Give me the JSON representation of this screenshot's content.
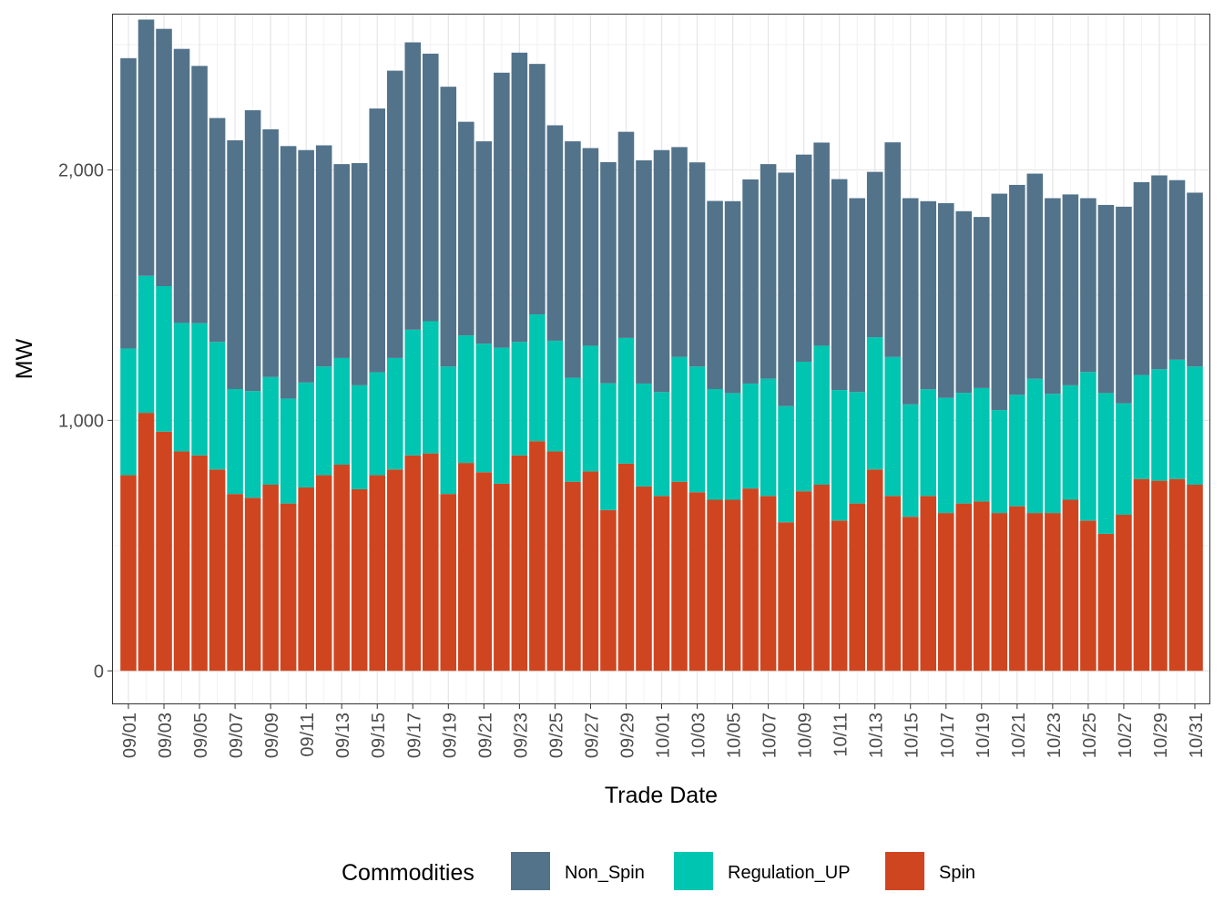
{
  "chart_data": {
    "type": "bar",
    "stacked": true,
    "xlabel": "Trade Date",
    "ylabel": "MW",
    "ylim": [
      -130,
      2620
    ],
    "yticks": [
      0,
      1000,
      2000
    ],
    "ytick_labels": [
      "0",
      "1,000",
      "2,000"
    ],
    "grid": true,
    "legend": {
      "title": "Commodities",
      "position": "bottom"
    },
    "categories": [
      "09/01",
      "09/02",
      "09/03",
      "09/04",
      "09/05",
      "09/06",
      "09/07",
      "09/08",
      "09/09",
      "09/10",
      "09/11",
      "09/12",
      "09/13",
      "09/14",
      "09/15",
      "09/16",
      "09/17",
      "09/18",
      "09/19",
      "09/20",
      "09/21",
      "09/22",
      "09/23",
      "09/24",
      "09/25",
      "09/26",
      "09/27",
      "09/28",
      "09/29",
      "09/30",
      "10/01",
      "10/02",
      "10/03",
      "10/04",
      "10/05",
      "10/06",
      "10/07",
      "10/08",
      "10/09",
      "10/10",
      "10/11",
      "10/12",
      "10/13",
      "10/14",
      "10/15",
      "10/16",
      "10/17",
      "10/18",
      "10/19",
      "10/20",
      "10/21",
      "10/22",
      "10/23",
      "10/24",
      "10/25",
      "10/26",
      "10/27",
      "10/28",
      "10/29",
      "10/30",
      "10/31"
    ],
    "series": [
      {
        "name": "Spin",
        "color": "#cf4520",
        "values": [
          781,
          1030,
          955,
          876,
          860,
          804,
          706,
          691,
          743,
          668,
          732,
          781,
          823,
          725,
          781,
          804,
          860,
          868,
          706,
          830,
          793,
          747,
          860,
          917,
          876,
          755,
          796,
          642,
          827,
          736,
          698,
          755,
          713,
          683,
          683,
          728,
          698,
          593,
          717,
          743,
          600,
          668,
          804,
          698,
          615,
          698,
          630,
          668,
          676,
          630,
          657,
          630,
          630,
          683,
          600,
          547,
          623,
          766,
          759,
          766,
          743
        ]
      },
      {
        "name": "Regulation_UP",
        "color": "#00c5b0",
        "values": [
          506,
          547,
          581,
          513,
          528,
          509,
          419,
          426,
          430,
          419,
          419,
          434,
          426,
          415,
          411,
          445,
          502,
          528,
          509,
          509,
          513,
          543,
          453,
          506,
          442,
          415,
          502,
          506,
          502,
          411,
          415,
          498,
          502,
          442,
          426,
          419,
          468,
          464,
          517,
          555,
          521,
          445,
          528,
          555,
          449,
          426,
          460,
          442,
          453,
          411,
          445,
          536,
          476,
          457,
          593,
          562,
          445,
          415,
          445,
          476,
          472
        ]
      },
      {
        "name": "Non_Spin",
        "color": "#52738a",
        "values": [
          1159,
          1023,
          1027,
          1094,
          1027,
          894,
          993,
          1121,
          989,
          1008,
          928,
          883,
          774,
          887,
          1053,
          1147,
          1147,
          1068,
          1117,
          853,
          808,
          1098,
          1155,
          1000,
          860,
          944,
          789,
          883,
          823,
          891,
          966,
          838,
          815,
          751,
          766,
          815,
          857,
          932,
          827,
          811,
          842,
          774,
          660,
          857,
          823,
          751,
          777,
          725,
          683,
          864,
          838,
          819,
          781,
          762,
          694,
          751,
          785,
          770,
          774,
          717,
          694
        ]
      }
    ],
    "legend_order": [
      "Non_Spin",
      "Regulation_UP",
      "Spin"
    ]
  }
}
